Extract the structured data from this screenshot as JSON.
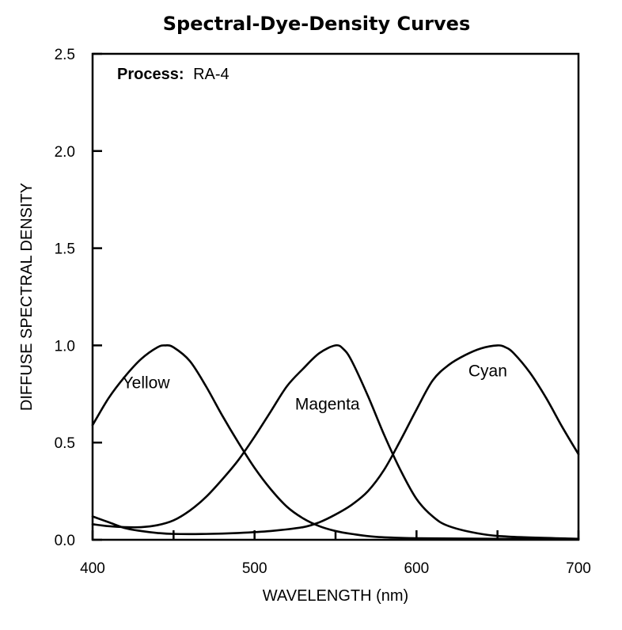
{
  "chart_data": {
    "type": "line",
    "title": "Spectral-Dye-Density Curves",
    "xlabel": "WAVELENGTH (nm)",
    "ylabel": "DIFFUSE SPECTRAL DENSITY",
    "xlim": [
      400,
      700
    ],
    "ylim": [
      0,
      2.5
    ],
    "x_ticks": [
      400,
      500,
      600,
      700
    ],
    "x_tick_labels": [
      "400",
      "500",
      "600",
      "700"
    ],
    "x_minor_ticks": [
      450,
      550,
      650
    ],
    "y_ticks": [
      0,
      0.5,
      1.0,
      1.5,
      2.0,
      2.5
    ],
    "y_tick_labels": [
      "0.0",
      "0.5",
      "1.0",
      "1.5",
      "2.0",
      "2.5"
    ],
    "grid": false,
    "legend": "none",
    "annotation": {
      "label": "Process:",
      "value": "RA-4"
    },
    "series": [
      {
        "name": "Yellow",
        "label_at": [
          433,
          0.78
        ],
        "points": [
          [
            400,
            0.59
          ],
          [
            410,
            0.73
          ],
          [
            420,
            0.84
          ],
          [
            430,
            0.93
          ],
          [
            440,
            0.99
          ],
          [
            445,
            1.0
          ],
          [
            450,
            0.99
          ],
          [
            460,
            0.92
          ],
          [
            470,
            0.79
          ],
          [
            480,
            0.64
          ],
          [
            490,
            0.5
          ],
          [
            500,
            0.37
          ],
          [
            510,
            0.26
          ],
          [
            520,
            0.17
          ],
          [
            530,
            0.11
          ],
          [
            540,
            0.07
          ],
          [
            550,
            0.045
          ],
          [
            560,
            0.03
          ],
          [
            575,
            0.015
          ],
          [
            600,
            0.008
          ],
          [
            650,
            0.005
          ],
          [
            700,
            0.003
          ]
        ]
      },
      {
        "name": "Magenta",
        "label_at": [
          545,
          0.67
        ],
        "points": [
          [
            400,
            0.08
          ],
          [
            410,
            0.07
          ],
          [
            420,
            0.065
          ],
          [
            430,
            0.065
          ],
          [
            440,
            0.075
          ],
          [
            450,
            0.1
          ],
          [
            460,
            0.15
          ],
          [
            470,
            0.22
          ],
          [
            480,
            0.31
          ],
          [
            490,
            0.41
          ],
          [
            500,
            0.53
          ],
          [
            510,
            0.66
          ],
          [
            520,
            0.79
          ],
          [
            530,
            0.88
          ],
          [
            540,
            0.96
          ],
          [
            550,
            1.0
          ],
          [
            555,
            0.98
          ],
          [
            560,
            0.92
          ],
          [
            570,
            0.74
          ],
          [
            580,
            0.54
          ],
          [
            590,
            0.36
          ],
          [
            600,
            0.21
          ],
          [
            610,
            0.12
          ],
          [
            620,
            0.07
          ],
          [
            640,
            0.03
          ],
          [
            660,
            0.015
          ],
          [
            700,
            0.005
          ]
        ]
      },
      {
        "name": "Cyan",
        "label_at": [
          644,
          0.84
        ],
        "points": [
          [
            400,
            0.12
          ],
          [
            410,
            0.09
          ],
          [
            420,
            0.06
          ],
          [
            430,
            0.045
          ],
          [
            440,
            0.035
          ],
          [
            450,
            0.03
          ],
          [
            470,
            0.03
          ],
          [
            490,
            0.035
          ],
          [
            510,
            0.045
          ],
          [
            530,
            0.065
          ],
          [
            540,
            0.09
          ],
          [
            550,
            0.13
          ],
          [
            560,
            0.18
          ],
          [
            570,
            0.25
          ],
          [
            580,
            0.36
          ],
          [
            590,
            0.51
          ],
          [
            600,
            0.67
          ],
          [
            610,
            0.82
          ],
          [
            620,
            0.9
          ],
          [
            630,
            0.95
          ],
          [
            640,
            0.985
          ],
          [
            650,
            1.0
          ],
          [
            655,
            0.99
          ],
          [
            660,
            0.96
          ],
          [
            670,
            0.86
          ],
          [
            680,
            0.73
          ],
          [
            690,
            0.58
          ],
          [
            700,
            0.44
          ]
        ]
      }
    ]
  }
}
